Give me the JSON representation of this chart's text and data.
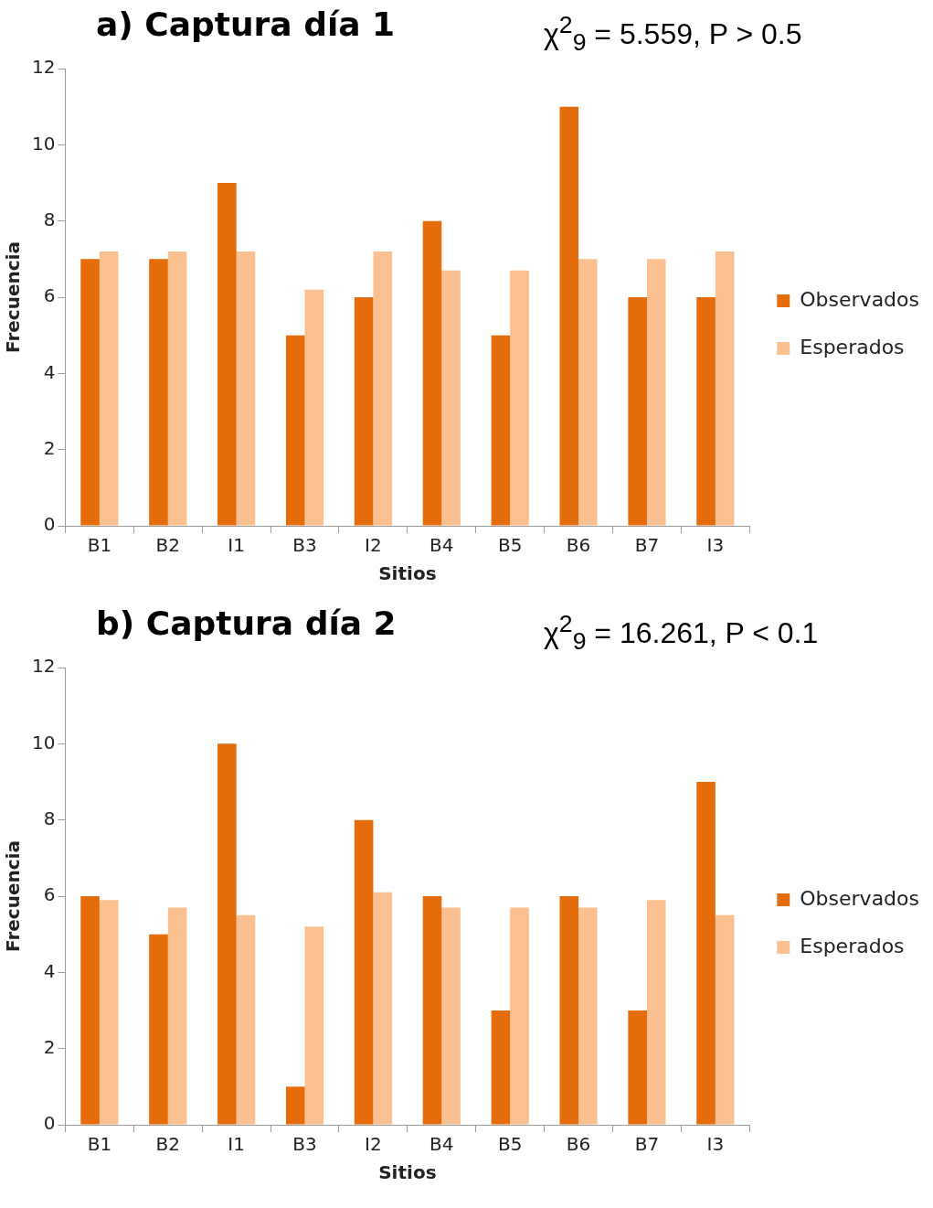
{
  "chart_data": [
    {
      "type": "bar",
      "title": "a) Captura día 1",
      "annotations": [
        "χ$^{2}$$_{9}$ = 5.559, P > 0.5"
      ],
      "xlabel": "Sitios",
      "ylabel": "Frecuencia",
      "categories": [
        "B1",
        "B2",
        "I1",
        "B3",
        "I2",
        "B4",
        "B5",
        "B6",
        "B7",
        "I3"
      ],
      "series": [
        {
          "name": "Observados",
          "color": "#e46c0a",
          "values": [
            7,
            7,
            9,
            5,
            6,
            8,
            5,
            11,
            6,
            6
          ]
        },
        {
          "name": "Esperados",
          "color": "#fac090",
          "values": [
            7.2,
            7.2,
            7.2,
            6.2,
            7.2,
            6.7,
            6.7,
            7.0,
            7.0,
            7.2
          ]
        }
      ],
      "ylim": [
        0,
        12
      ],
      "yticks": [
        0,
        2,
        4,
        6,
        8,
        10,
        12
      ],
      "grid": false,
      "legend": "right"
    },
    {
      "type": "bar",
      "title": "b) Captura día 2",
      "annotations": [
        "χ$^{2}$$_{9}$ = 16.261, P < 0.1"
      ],
      "xlabel": "Sitios",
      "ylabel": "Frecuencia",
      "categories": [
        "B1",
        "B2",
        "I1",
        "B3",
        "I2",
        "B4",
        "B5",
        "B6",
        "B7",
        "I3"
      ],
      "series": [
        {
          "name": "Observados",
          "color": "#e46c0a",
          "values": [
            6,
            5,
            10,
            1,
            8,
            6,
            3,
            6,
            3,
            9
          ]
        },
        {
          "name": "Esperados",
          "color": "#fac090",
          "values": [
            5.9,
            5.7,
            5.5,
            5.2,
            6.1,
            5.7,
            5.7,
            5.7,
            5.9,
            5.5
          ]
        }
      ],
      "ylim": [
        0,
        12
      ],
      "yticks": [
        0,
        2,
        4,
        6,
        8,
        10,
        12
      ],
      "grid": false,
      "legend": "right"
    }
  ]
}
